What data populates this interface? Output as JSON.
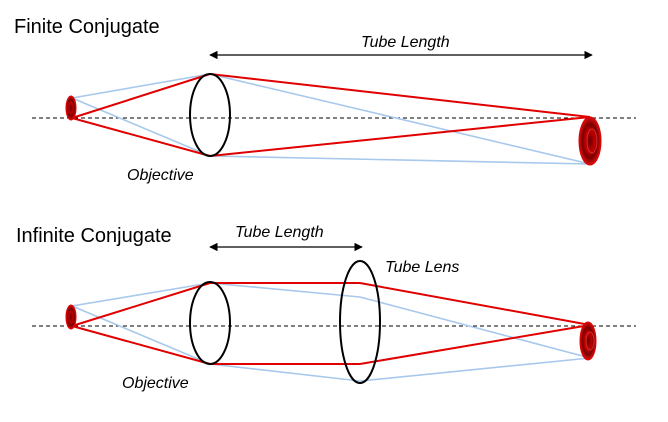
{
  "finite": {
    "title": "Finite Conjugate",
    "tube_length_label": "Tube Length",
    "objective_label": "Objective"
  },
  "infinite": {
    "title": "Infinite Conjugate",
    "tube_length_label": "Tube Length",
    "tube_lens_label": "Tube Lens",
    "objective_label": "Objective"
  },
  "colors": {
    "marginal_ray": "#e00000",
    "chief_ray": "#a8c8ec",
    "lens_outline": "#000000",
    "object_fill": "#c00000",
    "axis": "#000000"
  }
}
